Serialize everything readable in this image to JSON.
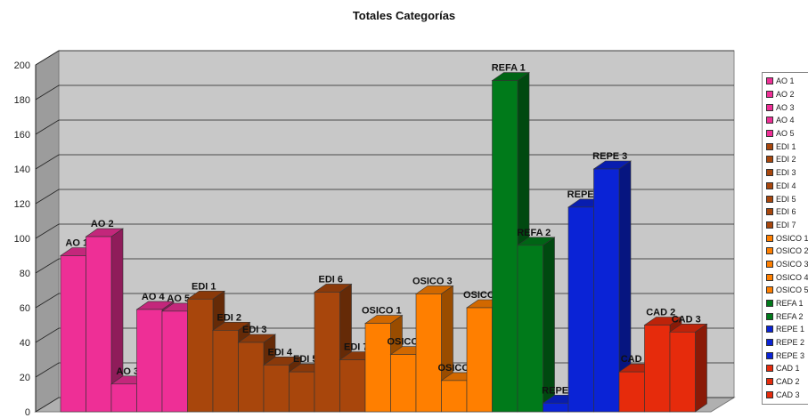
{
  "chart_data": {
    "type": "bar",
    "title": "Totales Categorías",
    "ylim": [
      0,
      200
    ],
    "yticks": [
      0,
      20,
      40,
      60,
      80,
      100,
      120,
      140,
      160,
      180,
      200
    ],
    "grid": true,
    "legend_position": "right",
    "categories": [
      "AO 1",
      "AO 2",
      "AO 3",
      "AO 4",
      "AO 5",
      "EDI 1",
      "EDI 2",
      "EDI 3",
      "EDI 4",
      "EDI 5",
      "EDI 6",
      "EDI 7",
      "OSICO 1",
      "OSICO 2",
      "OSICO 3",
      "OSICO 4",
      "OSICO 5",
      "REFA 1",
      "REFA 2",
      "REPE 1",
      "REPE 2",
      "REPE 3",
      "CAD 1",
      "CAD 2",
      "CAD 3"
    ],
    "values": [
      90,
      101,
      16,
      59,
      58,
      65,
      47,
      40,
      27,
      23,
      69,
      30,
      51,
      33,
      68,
      18,
      60,
      191,
      96,
      5,
      118,
      140,
      23,
      50,
      46
    ],
    "colors": [
      "#ee2f96",
      "#ee2f96",
      "#ee2f96",
      "#ee2f96",
      "#ee2f96",
      "#a8460c",
      "#a8460c",
      "#a8460c",
      "#a8460c",
      "#a8460c",
      "#a8460c",
      "#a8460c",
      "#ff7f00",
      "#ff7f00",
      "#ff7f00",
      "#ff7f00",
      "#ff7f00",
      "#007a1a",
      "#007a1a",
      "#0a23d6",
      "#0a23d6",
      "#0a23d6",
      "#e62b0c",
      "#e62b0c",
      "#e62b0c"
    ],
    "legend": [
      "AO 1",
      "AO 2",
      "AO 3",
      "AO 4",
      "AO 5",
      "EDI 1",
      "EDI 2",
      "EDI 3",
      "EDI 4",
      "EDI 5",
      "EDI 6",
      "EDI 7",
      "OSICO 1",
      "OSICO 2",
      "OSICO 3",
      "OSICO 4",
      "OSICO 5",
      "REFA 1",
      "REFA 2",
      "REPE 1",
      "REPE 2",
      "REPE 3",
      "CAD 1",
      "CAD 2",
      "CAD 3"
    ]
  }
}
